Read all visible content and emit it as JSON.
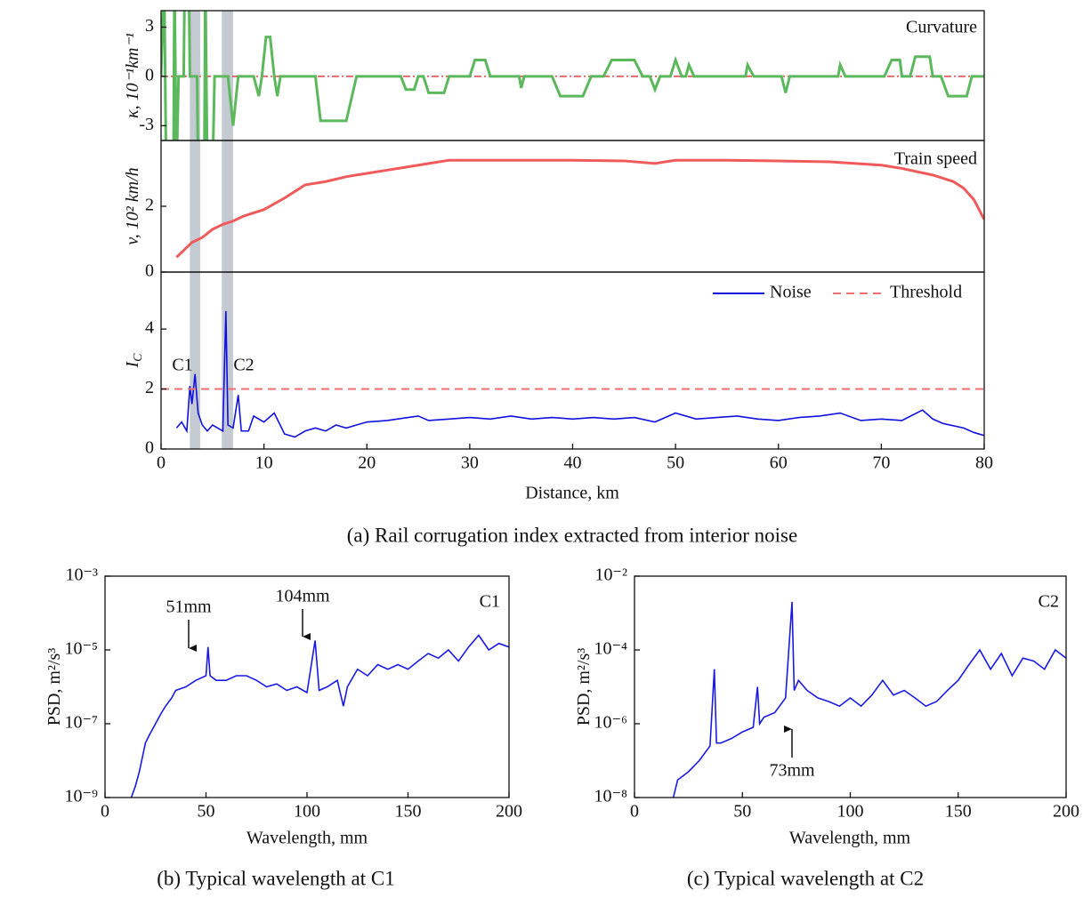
{
  "chart_data": [
    {
      "type": "line",
      "xlim": [
        0,
        80
      ],
      "ylim": [
        -3.9,
        4
      ],
      "yticks": [
        -3,
        0,
        3
      ],
      "ylabel": "κ, 10⁻¹km⁻¹",
      "annotations": [
        "Curvature"
      ],
      "hline": 0,
      "hline_color": "#e04040",
      "x": [
        0,
        0.3,
        0.5,
        1.2,
        1.3,
        1.5,
        1.7,
        2.2,
        2.3,
        2.7,
        2.8,
        3.5,
        3.6,
        4.2,
        4.3,
        4.5,
        5.0,
        5.2,
        6.5,
        7.0,
        7.5,
        9.0,
        9.5,
        9.8,
        10.2,
        10.6,
        11.0,
        11.3,
        11.6,
        15.0,
        15.5,
        18.0,
        19.0,
        23.3,
        23.8,
        24.6,
        25.0,
        25.5,
        26.0,
        27.5,
        28.0,
        30.0,
        30.5,
        31.5,
        32.0,
        34.8,
        35.0,
        35.3,
        38.0,
        38.8,
        41.0,
        41.8,
        43.0,
        43.8,
        46.0,
        46.8,
        47.5,
        48.0,
        48.5,
        49.5,
        50.0,
        50.6,
        51.0,
        51.3,
        51.8,
        56.8,
        57.0,
        57.6,
        60.3,
        60.7,
        61.1,
        65.8,
        66.0,
        66.5,
        70.3,
        71.0,
        71.8,
        72.0,
        72.8,
        73.3,
        74.7,
        75.0,
        75.8,
        76.5,
        78.3,
        78.8,
        80.0
      ],
      "series": [
        {
          "color": "#5cb85c",
          "values": [
            0,
            6,
            -6,
            -6,
            6,
            -6,
            0,
            0,
            6,
            6,
            0,
            0,
            -6,
            -6,
            6,
            -6,
            -6,
            0,
            0,
            -3,
            0,
            0,
            -1.2,
            0,
            2.4,
            2.4,
            0,
            -1.2,
            0,
            0,
            -2.7,
            -2.7,
            0,
            0,
            -0.8,
            -0.8,
            0,
            0,
            -1,
            -1,
            0,
            0,
            1,
            1,
            0,
            0,
            -0.7,
            0,
            0,
            -1.2,
            -1.2,
            0,
            0,
            1,
            1,
            0,
            0,
            -0.8,
            0,
            0,
            1,
            0,
            0,
            0.7,
            0,
            0,
            0.7,
            0,
            0,
            -1,
            0,
            0,
            0.7,
            0,
            0,
            1,
            1,
            0,
            0,
            1.2,
            1.2,
            0,
            0,
            -1.2,
            -1.2,
            0,
            0
          ]
        }
      ]
    },
    {
      "type": "line",
      "xlim": [
        0,
        80
      ],
      "ylim": [
        0,
        4
      ],
      "yticks": [
        0,
        2
      ],
      "ylabel": "v, 10² km/h",
      "annotations": [
        "Train speed"
      ],
      "x": [
        1.5,
        2,
        3,
        4,
        5,
        6,
        7,
        8,
        9,
        10,
        12,
        14,
        16,
        18,
        20,
        22,
        24,
        26,
        28,
        30,
        35,
        40,
        45,
        48,
        50,
        55,
        60,
        65,
        70,
        72,
        75,
        77,
        78,
        79,
        80
      ],
      "series": [
        {
          "color": "#f05a5a",
          "values": [
            0.45,
            0.6,
            0.9,
            1.05,
            1.3,
            1.45,
            1.55,
            1.7,
            1.8,
            1.9,
            2.25,
            2.65,
            2.75,
            2.9,
            3.0,
            3.1,
            3.2,
            3.3,
            3.4,
            3.4,
            3.4,
            3.4,
            3.38,
            3.3,
            3.4,
            3.4,
            3.38,
            3.35,
            3.25,
            3.15,
            2.95,
            2.75,
            2.55,
            2.2,
            1.6
          ]
        }
      ]
    },
    {
      "type": "line",
      "xlim": [
        0,
        80
      ],
      "xticks": [
        0,
        10,
        20,
        30,
        40,
        50,
        60,
        70,
        80
      ],
      "ylim": [
        0,
        5.9
      ],
      "yticks": [
        0,
        2,
        4
      ],
      "xlabel": "Distance, km",
      "ylabel": "I",
      "ylabel_subscript": "C",
      "caption": "(a) Rail corrugation index extracted from interior noise",
      "annotations": [
        "C1",
        "C2"
      ],
      "legend": "upper right",
      "highlight_ranges": [
        [
          2.8,
          3.8
        ],
        [
          5.9,
          7.0
        ]
      ],
      "highlight_color": "#c3cad2",
      "series": [
        {
          "name": "Noise",
          "color": "#1010e0",
          "x": [
            1.5,
            2,
            2.5,
            2.8,
            3,
            3.3,
            3.6,
            4,
            4.5,
            5,
            5.5,
            6,
            6.3,
            6.5,
            7,
            7.5,
            7.8,
            8.5,
            9,
            10,
            11,
            12,
            13,
            14,
            15,
            16,
            17,
            18,
            19,
            20,
            22,
            24,
            25,
            26,
            28,
            30,
            32,
            34,
            36,
            38,
            40,
            42,
            44,
            46,
            48,
            50,
            52,
            54,
            56,
            58,
            60,
            62,
            64,
            66,
            68,
            70,
            72,
            74,
            75,
            76,
            78,
            79,
            80
          ],
          "values": [
            0.7,
            0.9,
            0.6,
            2.1,
            1.5,
            2.5,
            1.2,
            0.8,
            0.6,
            0.8,
            0.7,
            0.6,
            4.6,
            0.8,
            0.7,
            1.8,
            0.6,
            0.6,
            1.1,
            0.9,
            1.2,
            0.5,
            0.4,
            0.6,
            0.7,
            0.6,
            0.8,
            0.7,
            0.8,
            0.9,
            0.95,
            1.05,
            1.1,
            0.95,
            1.0,
            1.05,
            1.0,
            1.1,
            1.0,
            1.05,
            1.0,
            1.05,
            1.0,
            1.05,
            0.9,
            1.2,
            1.0,
            1.05,
            1.1,
            1.0,
            0.95,
            1.05,
            1.1,
            1.2,
            0.95,
            1.0,
            0.95,
            1.3,
            1.0,
            0.85,
            0.7,
            0.55,
            0.45
          ]
        },
        {
          "name": "Threshold",
          "color": "#f07070",
          "dashed": true,
          "x": [
            0,
            80
          ],
          "values": [
            2,
            2
          ]
        }
      ]
    },
    {
      "type": "line",
      "log_y": true,
      "xlim": [
        0,
        200
      ],
      "xticks": [
        0,
        50,
        100,
        150,
        200
      ],
      "ylim": [
        1e-09,
        0.001
      ],
      "yticks": [
        {
          "value": 1e-09,
          "label": "10⁻⁹"
        },
        {
          "value": 1e-07,
          "label": "10⁻⁷"
        },
        {
          "value": 1e-05,
          "label": "10⁻⁵"
        },
        {
          "value": 0.001,
          "label": "10⁻³"
        }
      ],
      "xlabel": "Wavelength, mm",
      "ylabel": "PSD, m²/s³",
      "caption": "(b) Typical wavelength at C1",
      "annotations": [
        "51mm",
        "104mm",
        "C1"
      ],
      "x": [
        13,
        15,
        17,
        20,
        22,
        25,
        28,
        30,
        33,
        35,
        40,
        45,
        50,
        51,
        52,
        55,
        60,
        65,
        70,
        75,
        80,
        85,
        90,
        95,
        100,
        104,
        106,
        110,
        115,
        118,
        120,
        125,
        130,
        135,
        140,
        145,
        150,
        155,
        160,
        165,
        170,
        175,
        180,
        185,
        190,
        195,
        200
      ],
      "series": [
        {
          "color": "#1a1ae6",
          "values": [
            1e-09,
            2e-09,
            5e-09,
            3e-08,
            5e-08,
            1e-07,
            2e-07,
            3e-07,
            5e-07,
            8e-07,
            1e-06,
            1.5e-06,
            2e-06,
            1.2e-05,
            2e-06,
            1.5e-06,
            1.5e-06,
            2e-06,
            2e-06,
            1.5e-06,
            1e-06,
            1.2e-06,
            8e-07,
            1e-06,
            7e-07,
            1.8e-05,
            8e-07,
            1e-06,
            1.5e-06,
            3e-07,
            1e-06,
            3e-06,
            2e-06,
            4e-06,
            3e-06,
            4e-06,
            3e-06,
            5e-06,
            8e-06,
            6e-06,
            1e-05,
            5e-06,
            1.2e-05,
            2.5e-05,
            1e-05,
            1.5e-05,
            1.2e-05
          ]
        }
      ]
    },
    {
      "type": "line",
      "log_y": true,
      "xlim": [
        0,
        200
      ],
      "xticks": [
        0,
        50,
        100,
        150,
        200
      ],
      "ylim": [
        1e-08,
        0.01
      ],
      "yticks": [
        {
          "value": 1e-08,
          "label": "10⁻⁸"
        },
        {
          "value": 1e-06,
          "label": "10⁻⁶"
        },
        {
          "value": 0.0001,
          "label": "10⁻⁴"
        },
        {
          "value": 0.01,
          "label": "10⁻²"
        }
      ],
      "xlabel": "Wavelength, mm",
      "ylabel": "PSD, m²/s³",
      "caption": "(c) Typical wavelength at C2",
      "annotations": [
        "C2",
        "73mm"
      ],
      "x": [
        18,
        20,
        25,
        30,
        35,
        37,
        38,
        40,
        45,
        50,
        55,
        57,
        58,
        60,
        65,
        70,
        73,
        74,
        76,
        80,
        85,
        90,
        95,
        100,
        105,
        110,
        115,
        120,
        125,
        130,
        135,
        140,
        145,
        150,
        155,
        160,
        165,
        170,
        175,
        180,
        185,
        190,
        195,
        200
      ],
      "series": [
        {
          "color": "#1a1ae6",
          "values": [
            1e-08,
            3e-08,
            5e-08,
            1e-07,
            2.5e-07,
            3e-05,
            3e-07,
            3e-07,
            4e-07,
            6e-07,
            8e-07,
            1e-05,
            1e-06,
            1.5e-06,
            2e-06,
            5e-06,
            0.002,
            8e-06,
            1.5e-05,
            8e-06,
            5e-06,
            4e-06,
            3e-06,
            5e-06,
            3e-06,
            6e-06,
            1.5e-05,
            6e-06,
            8e-06,
            5e-06,
            3e-06,
            4e-06,
            8e-06,
            1.5e-05,
            4e-05,
            0.0001,
            3e-05,
            8e-05,
            2e-05,
            6e-05,
            5e-05,
            3e-05,
            0.0001,
            6e-05
          ]
        }
      ]
    }
  ]
}
